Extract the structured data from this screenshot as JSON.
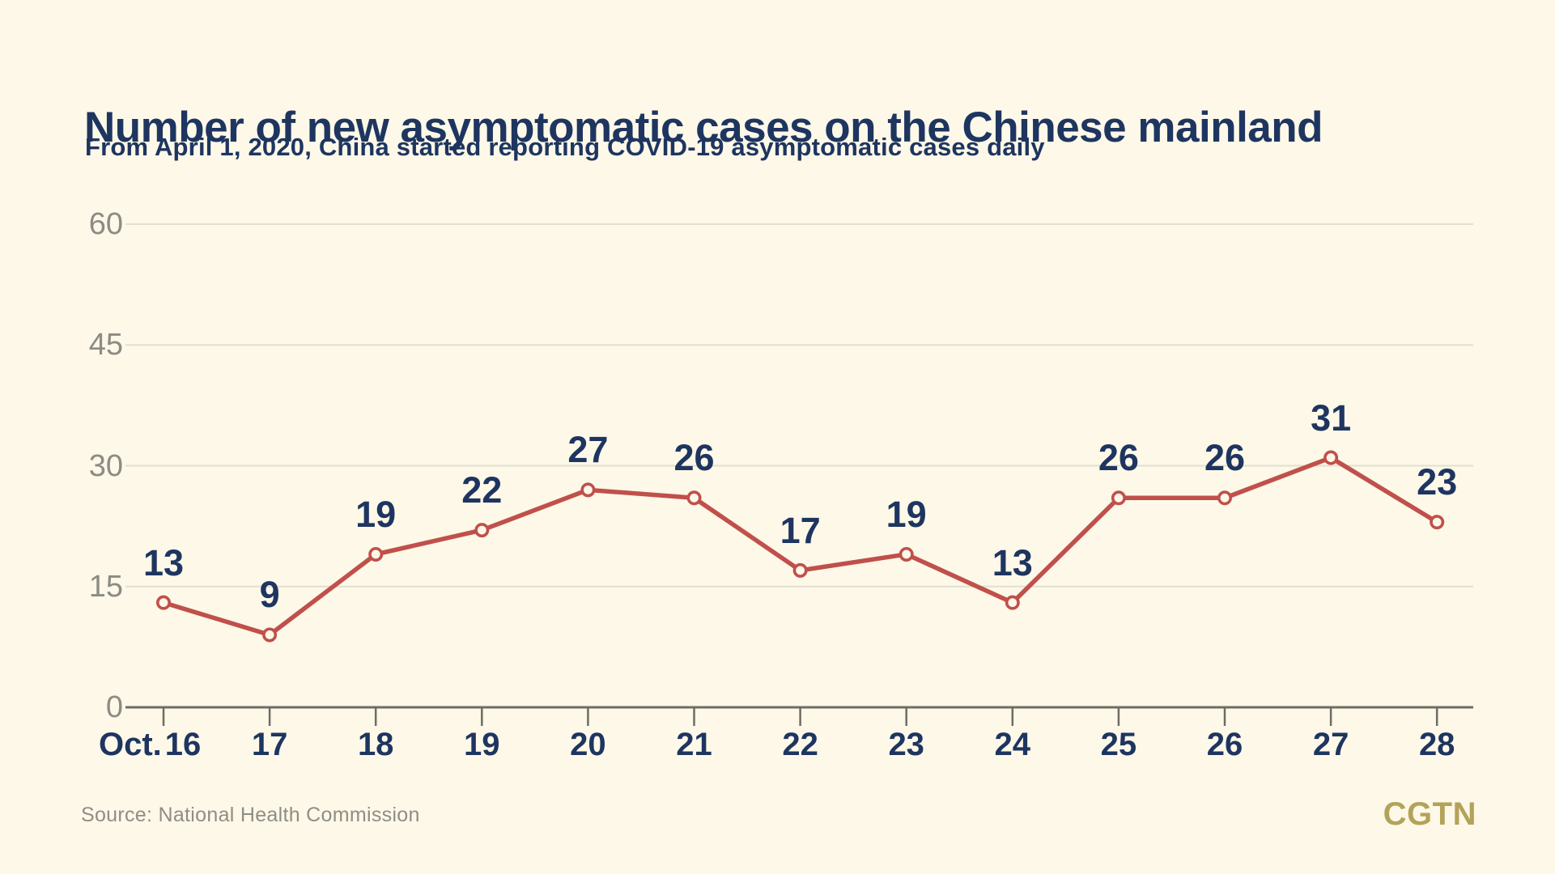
{
  "header": {
    "title": "Number of new asymptomatic cases on the Chinese mainland",
    "subtitle": "From April 1, 2020, China started reporting COVID-19 asymptomatic cases daily"
  },
  "footer": {
    "source": "Source: National Health Commission",
    "logo": "CGTN"
  },
  "colors": {
    "background": "#fdf8e8",
    "line": "#c0504b",
    "marker_fill": "#fdf8e8",
    "navy": "#1e3560",
    "gridline": "#e3e0d1",
    "axis": "#6e6c65",
    "ylabel_gray": "#8c8b84",
    "source_gray": "#8f8d84",
    "logo_gold": "#b3a259"
  },
  "chart_data": {
    "type": "line",
    "title": "Number of new asymptomatic cases on the Chinese mainland",
    "x_prefix": "Oct.",
    "categories": [
      "16",
      "17",
      "18",
      "19",
      "20",
      "21",
      "22",
      "23",
      "24",
      "25",
      "26",
      "27",
      "28"
    ],
    "series": [
      {
        "name": "New asymptomatic cases",
        "values": [
          13,
          9,
          19,
          22,
          27,
          26,
          17,
          19,
          13,
          26,
          26,
          31,
          23
        ]
      }
    ],
    "yticks": [
      0,
      15,
      30,
      45,
      60
    ],
    "ylim": [
      0,
      60
    ],
    "grid": "horizontal",
    "legend": "none",
    "marker": "open-circle",
    "data_labels": "above-points"
  }
}
